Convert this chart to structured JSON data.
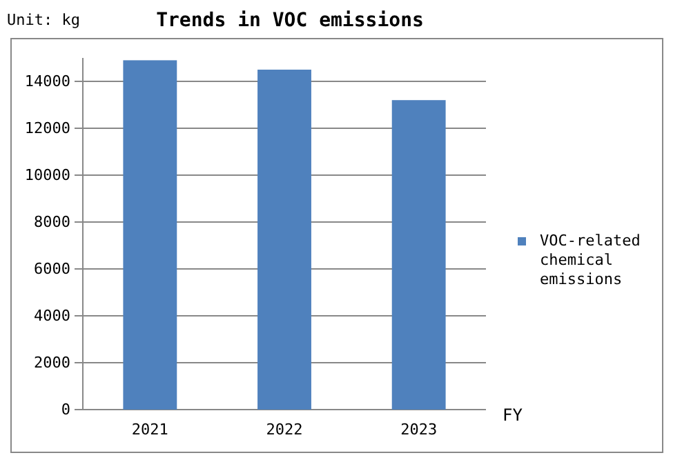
{
  "chart_data": {
    "type": "bar",
    "title": "Trends in VOC emissions",
    "annotations": [
      "Unit: kg"
    ],
    "xlabel": "FY",
    "categories": [
      "2021",
      "2022",
      "2023"
    ],
    "series": [
      {
        "name": "VOC-related chemical emissions",
        "color": "#4f81bd",
        "values": [
          14900,
          14500,
          13200
        ]
      }
    ],
    "ylim": [
      0,
      15000
    ],
    "yticks": [
      0,
      2000,
      4000,
      6000,
      8000,
      10000,
      12000,
      14000
    ],
    "grid": "y",
    "legend": "right"
  }
}
